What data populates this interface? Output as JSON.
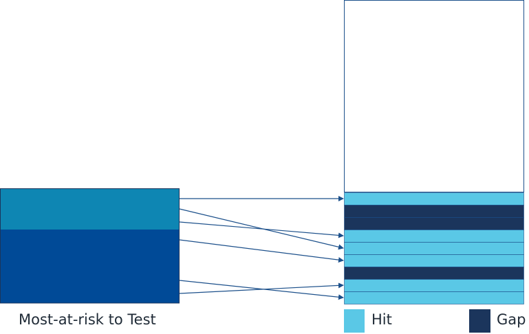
{
  "source": {
    "caption": "Most-at-risk to Test",
    "segments": [
      {
        "name": "top",
        "color": "#0e86b3"
      },
      {
        "name": "bottom",
        "color": "#004a97"
      }
    ]
  },
  "target": {
    "stack": [
      "Hit",
      "Gap",
      "Gap",
      "Hit",
      "Hit",
      "Hit",
      "Gap",
      "Hit",
      "Hit"
    ],
    "unfilled_color": "#ffffff",
    "border_color": "#1b4f8a"
  },
  "mappings": [
    {
      "from": "top",
      "to_row": 0
    },
    {
      "from": "top",
      "to_row": 4
    },
    {
      "from": "bottom",
      "to_row": 3
    },
    {
      "from": "bottom",
      "to_row": 5
    },
    {
      "from": "bottom",
      "to_row": 8
    },
    {
      "from": "bottom",
      "to_row": 7
    }
  ],
  "legend": {
    "hit_label": "Hit",
    "gap_label": "Gap",
    "hit_color": "#5ac8e6",
    "gap_color": "#1b355c"
  },
  "arrow_color": "#1b4f8a"
}
